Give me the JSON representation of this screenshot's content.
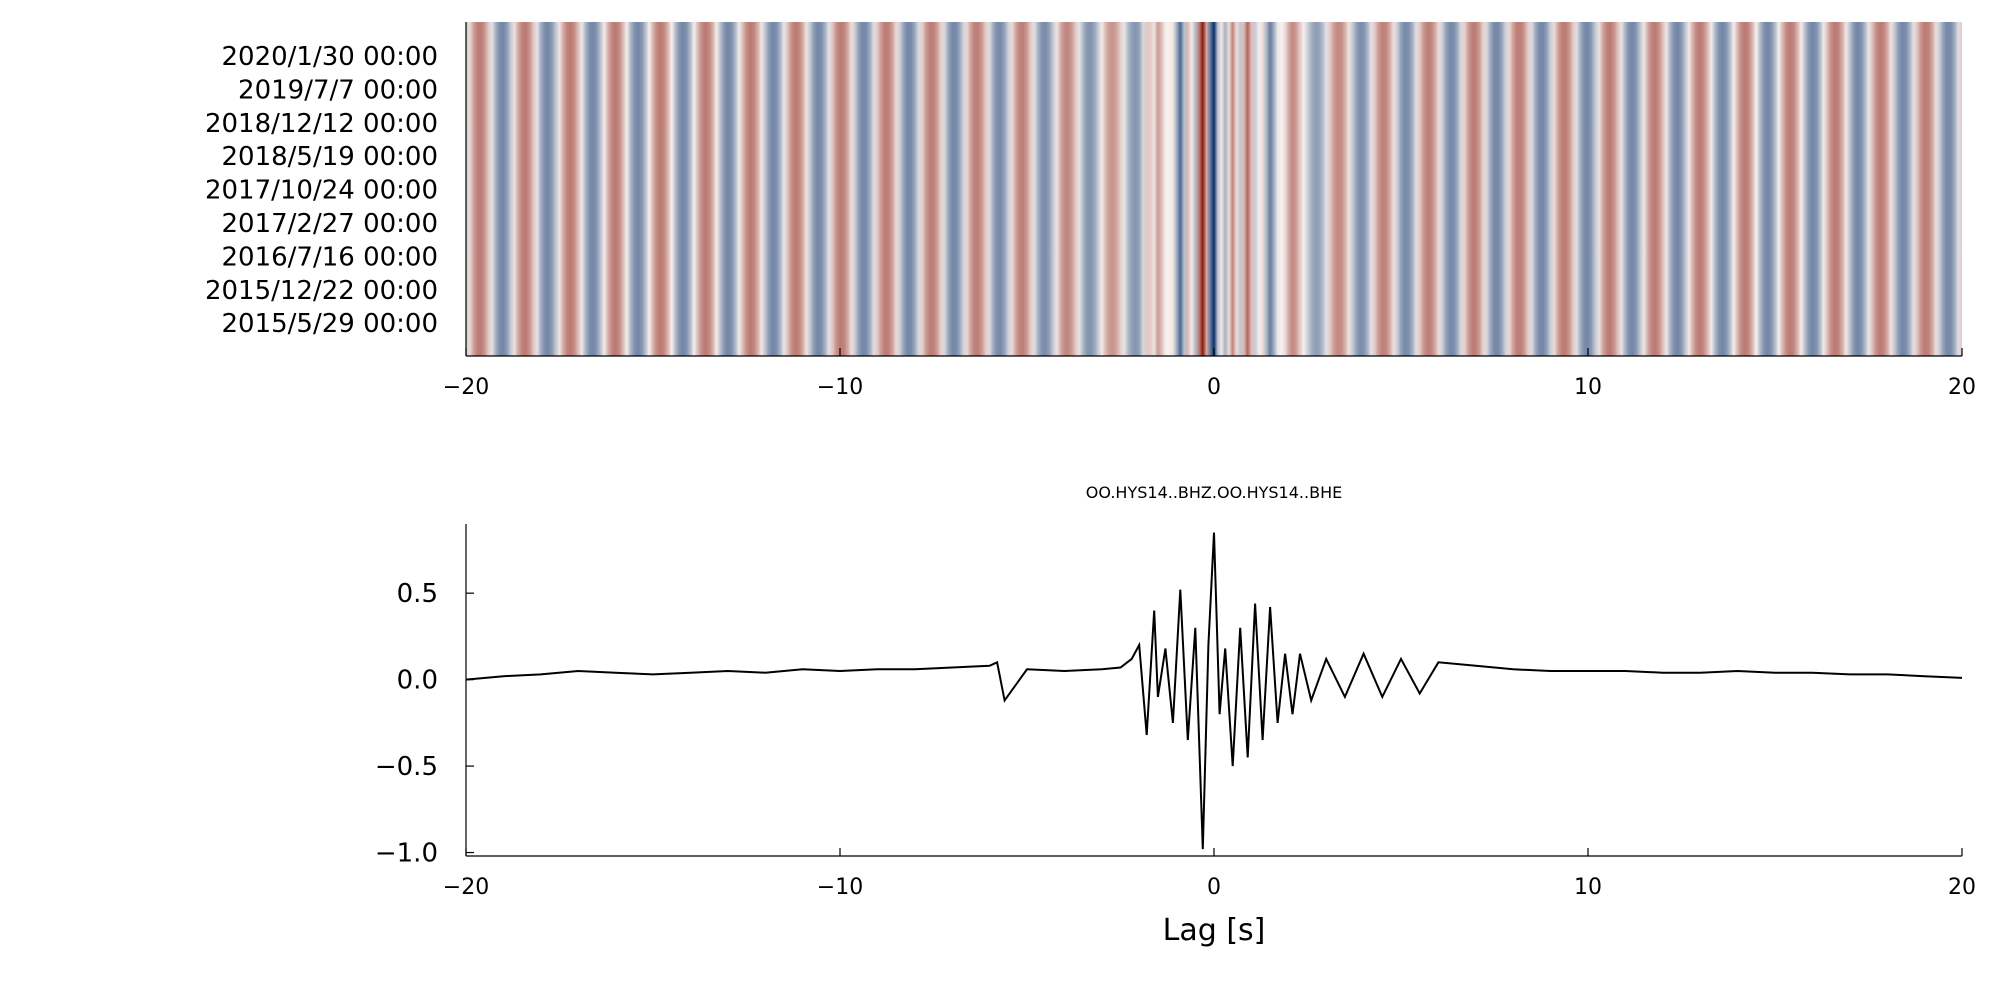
{
  "chart_data": [
    {
      "type": "heatmap",
      "title": "",
      "xlabel": "",
      "ylabel": "",
      "xlim": [
        -20,
        20
      ],
      "x_ticks": [
        -20,
        -10,
        0,
        10,
        20
      ],
      "x_tick_labels": [
        "−20",
        "−10",
        "0",
        "10",
        "20"
      ],
      "y_tick_labels": [
        "2020/1/30 00:00",
        "2019/7/7 00:00",
        "2018/12/12 00:00",
        "2018/5/19 00:00",
        "2017/10/24 00:00",
        "2017/2/27 00:00",
        "2016/7/16 00:00",
        "2015/12/22 00:00",
        "2015/5/29 00:00"
      ],
      "colormap": "diverging red-white-blue",
      "colors": {
        "positive": "#08306b",
        "negative": "#8b1a0e",
        "zero": "#f7f2f0"
      },
      "grid": false,
      "legend": "none"
    },
    {
      "type": "line",
      "title": "OO.HYS14..BHZ.OO.HYS14..BHE",
      "xlabel": "Lag [s]",
      "ylabel": "",
      "xlim": [
        -20,
        20
      ],
      "ylim": [
        -1.02,
        0.9
      ],
      "x_ticks": [
        -20,
        -10,
        0,
        10,
        20
      ],
      "x_tick_labels": [
        "−20",
        "−10",
        "0",
        "10",
        "20"
      ],
      "y_ticks": [
        0.5,
        0.0,
        -0.5,
        -1.0
      ],
      "y_tick_labels": [
        "0.5",
        "0.0",
        "−0.5",
        "−1.0"
      ],
      "grid": false,
      "legend": "none",
      "line_color": "#000000",
      "series": [
        {
          "x": [
            -20.0,
            -19.0,
            -18.0,
            -17.0,
            -16.0,
            -15.0,
            -14.0,
            -13.0,
            -12.0,
            -11.0,
            -10.0,
            -9.0,
            -8.0,
            -7.0,
            -6.0,
            -5.8,
            -5.6,
            -5.0,
            -4.0,
            -3.0,
            -2.5,
            -2.2,
            -2.0,
            -1.8,
            -1.6,
            -1.5,
            -1.3,
            -1.1,
            -0.9,
            -0.7,
            -0.5,
            -0.3,
            -0.15,
            0.0,
            0.15,
            0.3,
            0.5,
            0.7,
            0.9,
            1.1,
            1.3,
            1.5,
            1.7,
            1.9,
            2.1,
            2.3,
            2.6,
            3.0,
            3.5,
            4.0,
            4.5,
            5.0,
            5.5,
            6.0,
            7.0,
            8.0,
            9.0,
            10.0,
            11.0,
            12.0,
            13.0,
            14.0,
            15.0,
            16.0,
            17.0,
            18.0,
            19.0,
            20.0
          ],
          "y": [
            0.0,
            0.02,
            0.03,
            0.05,
            0.04,
            0.03,
            0.04,
            0.05,
            0.04,
            0.06,
            0.05,
            0.06,
            0.06,
            0.07,
            0.08,
            0.1,
            -0.12,
            0.06,
            0.05,
            0.06,
            0.07,
            0.12,
            0.2,
            -0.32,
            0.4,
            -0.1,
            0.18,
            -0.25,
            0.52,
            -0.35,
            0.3,
            -0.98,
            0.2,
            0.85,
            -0.2,
            0.18,
            -0.5,
            0.3,
            -0.45,
            0.44,
            -0.35,
            0.42,
            -0.25,
            0.15,
            -0.2,
            0.15,
            -0.12,
            0.12,
            -0.1,
            0.15,
            -0.1,
            0.12,
            -0.08,
            0.1,
            0.08,
            0.06,
            0.05,
            0.05,
            0.05,
            0.04,
            0.04,
            0.05,
            0.04,
            0.04,
            0.03,
            0.03,
            0.02,
            0.01
          ]
        }
      ]
    }
  ]
}
